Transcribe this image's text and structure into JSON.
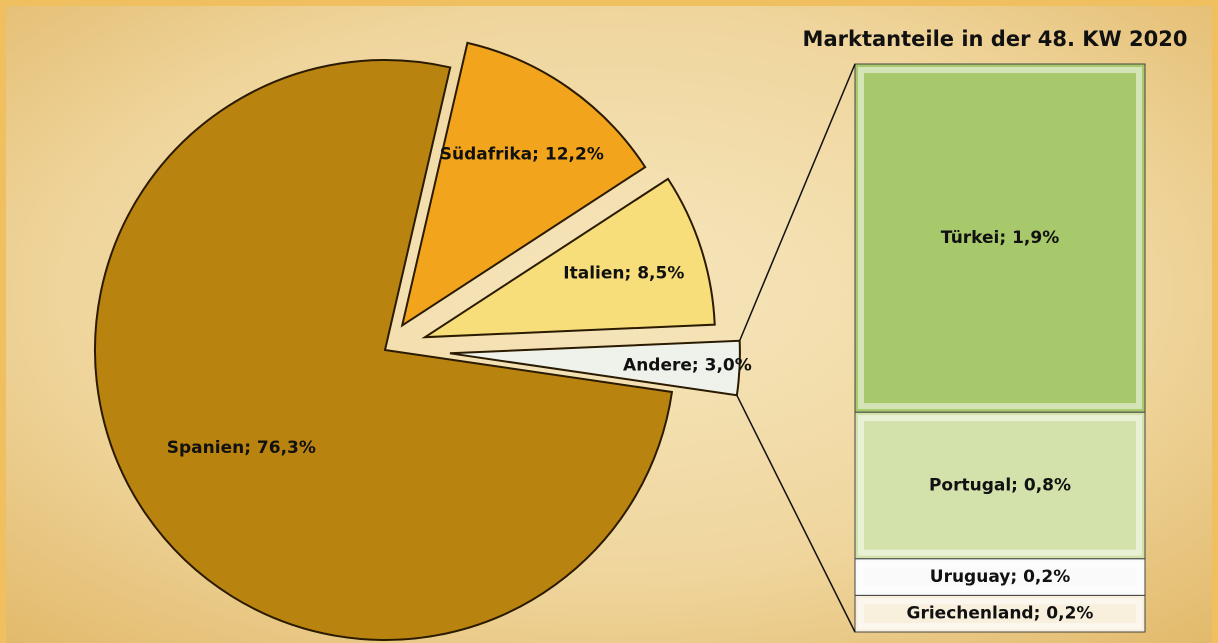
{
  "chart_data": [
    {
      "type": "pie",
      "values": [
        76.3,
        12.2,
        8.5,
        3.0
      ],
      "value_labels": [
        "Spanien; 76,3%",
        "Südafrika; 12,2%",
        "Italien; 8,5%",
        "Andere; 3,0%"
      ],
      "colors": [
        "#b98310",
        "#f2a51c",
        "#f7de7a",
        "#eef2ea"
      ]
    },
    {
      "type": "bar",
      "title": "Marktanteile in der 48. KW 2020",
      "values": [
        0.2,
        0.2,
        0.8,
        1.9
      ],
      "value_labels": [
        "Griechenland; 0,2%",
        "Uruguay; 0,2%",
        "Portugal; 0,8%",
        "Türkei; 1,9%"
      ],
      "colors": [
        "#f8efdc",
        "#fafafa",
        "#d3e2ab",
        "#a8c86c"
      ]
    }
  ]
}
